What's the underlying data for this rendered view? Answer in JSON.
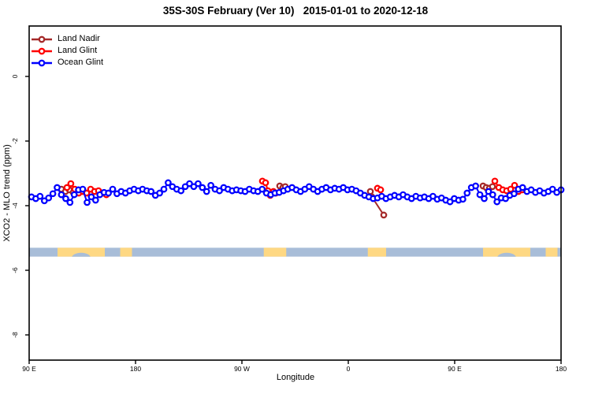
{
  "title": "35S-30S February (Ver 10)   2015-01-01 to 2020-12-18",
  "legend": {
    "items": [
      {
        "label": "Land Nadir",
        "color": "#a52a2a"
      },
      {
        "label": "Land Glint",
        "color": "#ff0000"
      },
      {
        "label": "Ocean Glint",
        "color": "#0000ff"
      }
    ]
  },
  "chart_data": {
    "type": "line",
    "title": "35S-30S February (Ver 10)  2015-01-01 to 2020-12-18",
    "xlabel": "Longitude",
    "ylabel": "XCO2 - MLO trend (ppm)",
    "xlim": [
      90,
      540
    ],
    "ylim": [
      -8.78,
      1.56
    ],
    "grid": false,
    "legend_position": "top-left",
    "x_ticks": [
      {
        "value": 90,
        "label": "90 E"
      },
      {
        "value": 180,
        "label": "180"
      },
      {
        "value": 270,
        "label": "90 W"
      },
      {
        "value": 360,
        "label": "0"
      },
      {
        "value": 450,
        "label": "90 E"
      },
      {
        "value": 540,
        "label": "180"
      }
    ],
    "y_ticks": [
      {
        "value": 0,
        "label": "0"
      },
      {
        "value": -2,
        "label": "-2"
      },
      {
        "value": -4,
        "label": "-4"
      },
      {
        "value": -6,
        "label": "-6"
      },
      {
        "value": -8,
        "label": "-8"
      }
    ],
    "series": [
      {
        "name": "Land Nadir",
        "color": "#a52a2a",
        "clusters": [
          [
            [
              117.3,
              -3.49
            ],
            [
              120.7,
              -3.56
            ],
            [
              124,
              -3.51
            ],
            [
              127.3,
              -3.59
            ]
          ],
          [
            [
              302,
              -3.39
            ],
            [
              304.7,
              -3.44
            ],
            [
              306.7,
              -3.41
            ]
          ],
          [
            [
              378.7,
              -3.56
            ],
            [
              380,
              -3.73
            ],
            [
              390,
              -4.29
            ]
          ],
          [
            [
              474,
              -3.39
            ],
            [
              476.7,
              -3.44
            ],
            [
              479.3,
              -3.46
            ],
            [
              482,
              -3.41
            ]
          ]
        ]
      },
      {
        "name": "Land Glint",
        "color": "#ff0000",
        "clusters": [
          [
            [
              122,
              -3.44
            ],
            [
              125.3,
              -3.32
            ],
            [
              128.7,
              -3.49
            ],
            [
              132,
              -3.61
            ],
            [
              135.3,
              -3.56
            ],
            [
              138.7,
              -3.61
            ],
            [
              142,
              -3.49
            ],
            [
              145.3,
              -3.56
            ],
            [
              148.7,
              -3.54
            ],
            [
              152,
              -3.61
            ],
            [
              155.3,
              -3.66
            ]
          ],
          [
            [
              287.3,
              -3.24
            ],
            [
              290,
              -3.29
            ],
            [
              292,
              -3.54
            ],
            [
              294,
              -3.68
            ],
            [
              296.7,
              -3.56
            ],
            [
              298.7,
              -3.61
            ]
          ],
          [
            [
              384.7,
              -3.46
            ],
            [
              387.3,
              -3.51
            ]
          ],
          [
            [
              484,
              -3.24
            ],
            [
              487.3,
              -3.44
            ],
            [
              490.7,
              -3.51
            ],
            [
              494,
              -3.54
            ],
            [
              497.3,
              -3.49
            ],
            [
              500.7,
              -3.37
            ],
            [
              504,
              -3.56
            ],
            [
              507.3,
              -3.51
            ]
          ]
        ]
      },
      {
        "name": "Ocean Glint",
        "color": "#0000ff",
        "lon_start": 92,
        "lon_step": 3.613,
        "ppm": [
          -3.73,
          -3.78,
          -3.71,
          -3.85,
          -3.76,
          -3.63,
          -3.44,
          -3.66,
          -3.78,
          -3.9,
          -3.66,
          -3.51,
          -3.49,
          -3.9,
          -3.73,
          -3.83,
          -3.66,
          -3.59,
          -3.61,
          -3.49,
          -3.63,
          -3.56,
          -3.61,
          -3.54,
          -3.49,
          -3.54,
          -3.49,
          -3.54,
          -3.56,
          -3.68,
          -3.61,
          -3.49,
          -3.29,
          -3.41,
          -3.49,
          -3.54,
          -3.41,
          -3.32,
          -3.41,
          -3.32,
          -3.44,
          -3.56,
          -3.37,
          -3.49,
          -3.54,
          -3.44,
          -3.49,
          -3.54,
          -3.51,
          -3.54,
          -3.56,
          -3.49,
          -3.54,
          -3.56,
          -3.49,
          -3.61,
          -3.66,
          -3.61,
          -3.59,
          -3.54,
          -3.49,
          -3.44,
          -3.51,
          -3.56,
          -3.49,
          -3.41,
          -3.49,
          -3.56,
          -3.49,
          -3.44,
          -3.51,
          -3.46,
          -3.49,
          -3.44,
          -3.51,
          -3.49,
          -3.54,
          -3.61,
          -3.68,
          -3.73,
          -3.78,
          -3.76,
          -3.71,
          -3.78,
          -3.73,
          -3.68,
          -3.73,
          -3.66,
          -3.73,
          -3.78,
          -3.71,
          -3.76,
          -3.73,
          -3.78,
          -3.71,
          -3.8,
          -3.76,
          -3.83,
          -3.88,
          -3.78,
          -3.83,
          -3.8,
          -3.61,
          -3.44,
          -3.39,
          -3.66,
          -3.78,
          -3.56,
          -3.66,
          -3.88,
          -3.76,
          -3.78,
          -3.68,
          -3.63,
          -3.49,
          -3.44,
          -3.56,
          -3.51,
          -3.59,
          -3.54,
          -3.61,
          -3.56,
          -3.49,
          -3.59,
          -3.51
        ]
      }
    ],
    "land_ocean_strip": {
      "ppm_top": -5.3,
      "ppm_bottom": -5.58,
      "ocean_color": "#a8bdd8",
      "land_color": "#fed883",
      "land_patches": [
        {
          "from": 114,
          "to": 154,
          "notch": {
            "from": 126,
            "to": 142
          }
        },
        {
          "from": 167,
          "to": 177
        },
        {
          "from": 288.5,
          "to": 307.5
        },
        {
          "from": 376.5,
          "to": 392
        },
        {
          "from": 474,
          "to": 514,
          "notch": {
            "from": 486,
            "to": 502
          }
        },
        {
          "from": 527,
          "to": 537
        }
      ]
    }
  }
}
